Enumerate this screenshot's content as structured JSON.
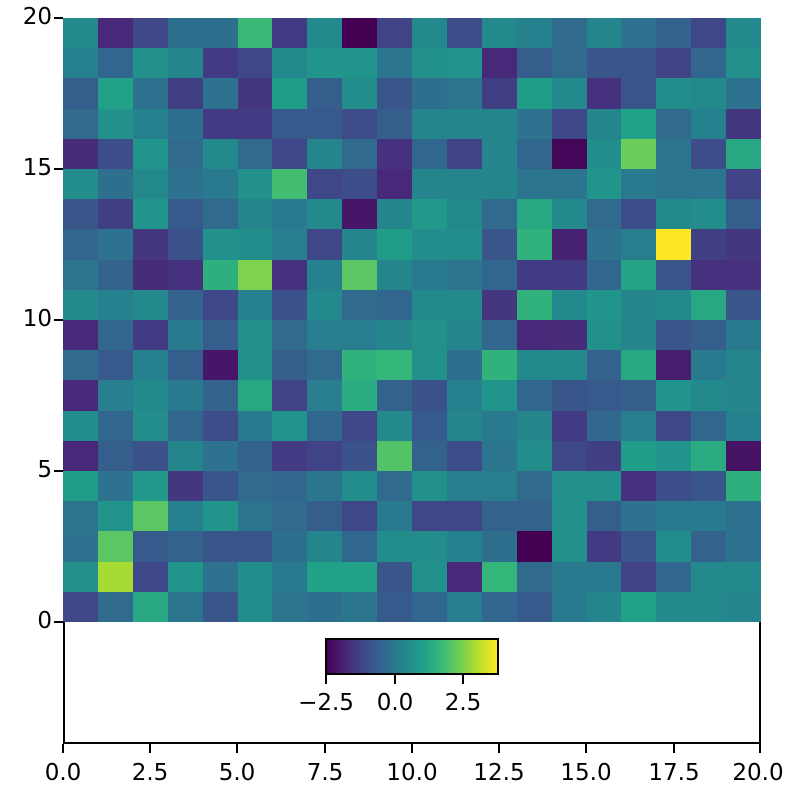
{
  "chart_data": {
    "type": "heatmap",
    "title": "",
    "xlabel": "",
    "ylabel": "",
    "xlim": [
      0,
      20
    ],
    "ylim": [
      -4,
      20
    ],
    "grid": false,
    "colormap": "viridis",
    "vmin": -2.5,
    "vmax": 3.85,
    "x_ticks": [
      "0.0",
      "2.5",
      "5.0",
      "7.5",
      "10.0",
      "12.5",
      "15.0",
      "17.5",
      "20.0"
    ],
    "y_ticks": [
      "0",
      "5",
      "10",
      "15",
      "20"
    ],
    "rows_order": "top (y=19..20) to bottom (y=0..1)",
    "values": [
      [
        0.5,
        -1.8,
        -1.1,
        -0.2,
        -0.2,
        1.8,
        -1.4,
        0.5,
        -2.5,
        -1.2,
        0.5,
        -1.0,
        0.5,
        0.3,
        -0.3,
        0.4,
        -0.1,
        -0.5,
        -1.1,
        0.5
      ],
      [
        0.3,
        -0.4,
        0.7,
        0.4,
        -1.4,
        -1.1,
        0.5,
        0.8,
        0.8,
        0.0,
        0.7,
        0.8,
        -1.8,
        -0.6,
        -0.3,
        -0.8,
        -0.8,
        -1.2,
        -0.4,
        0.7
      ],
      [
        -0.6,
        1.1,
        -0.1,
        -1.3,
        -0.1,
        -1.5,
        1.0,
        -0.6,
        0.6,
        -0.8,
        -0.2,
        0.0,
        -1.3,
        1.0,
        0.5,
        -1.6,
        -0.8,
        0.6,
        0.5,
        -0.1
      ],
      [
        -0.3,
        0.7,
        0.3,
        -0.2,
        -1.4,
        -1.4,
        -0.7,
        -0.7,
        -1.0,
        -0.6,
        0.4,
        0.4,
        0.4,
        -0.1,
        -1.1,
        0.4,
        1.1,
        -0.3,
        0.3,
        -1.5
      ],
      [
        -1.7,
        -1.0,
        0.8,
        -0.3,
        0.5,
        -0.3,
        -1.1,
        0.4,
        -0.3,
        -1.6,
        -0.4,
        -1.2,
        0.4,
        -0.4,
        -2.4,
        0.6,
        2.4,
        0.0,
        -1.0,
        1.3
      ],
      [
        0.6,
        -0.2,
        0.5,
        -0.1,
        0.1,
        0.7,
        1.9,
        -1.1,
        -1.0,
        -1.8,
        0.4,
        0.4,
        0.4,
        0.0,
        0.0,
        0.8,
        0.1,
        0.0,
        0.0,
        -1.2
      ],
      [
        -0.8,
        -1.3,
        0.8,
        -0.7,
        -0.3,
        0.4,
        0.1,
        0.5,
        -2.1,
        0.4,
        0.9,
        0.5,
        -0.3,
        1.3,
        0.5,
        -0.3,
        -1.0,
        0.5,
        0.6,
        -0.6
      ],
      [
        -0.4,
        -0.1,
        -1.5,
        -0.9,
        0.7,
        0.6,
        0.2,
        -1.1,
        0.4,
        1.0,
        0.6,
        0.6,
        -0.8,
        1.6,
        -1.9,
        -0.1,
        0.2,
        3.85,
        -1.3,
        -1.5
      ],
      [
        0.0,
        -0.5,
        -1.7,
        -1.6,
        1.5,
        2.6,
        -1.6,
        0.3,
        2.2,
        0.4,
        0.1,
        0.0,
        -0.4,
        -1.4,
        -1.4,
        -0.4,
        1.2,
        -0.8,
        -1.6,
        -1.6
      ],
      [
        0.5,
        0.3,
        0.5,
        -0.5,
        -1.1,
        0.3,
        -0.9,
        0.5,
        -0.3,
        -0.4,
        0.5,
        0.5,
        -1.5,
        1.6,
        0.5,
        0.8,
        0.4,
        0.5,
        1.3,
        -0.8
      ],
      [
        -1.8,
        -0.4,
        -1.4,
        0.1,
        -0.6,
        0.7,
        -0.3,
        0.2,
        0.2,
        0.4,
        0.7,
        0.4,
        -0.4,
        -1.8,
        -1.7,
        0.7,
        0.4,
        -0.8,
        -0.6,
        0.1
      ],
      [
        -0.3,
        -0.7,
        0.3,
        -0.6,
        -2.1,
        0.7,
        -0.6,
        -0.3,
        1.6,
        1.7,
        0.7,
        -0.2,
        1.6,
        0.5,
        0.5,
        -0.5,
        1.3,
        -2.0,
        0.1,
        0.4
      ],
      [
        -1.8,
        0.2,
        0.5,
        0.1,
        -0.5,
        1.3,
        -1.2,
        0.2,
        1.4,
        -0.5,
        -0.9,
        0.3,
        0.8,
        -0.4,
        -0.8,
        -0.7,
        -0.6,
        0.8,
        0.5,
        0.4
      ],
      [
        0.6,
        -0.4,
        0.6,
        -0.4,
        -1.0,
        0.1,
        0.8,
        -0.4,
        -1.1,
        0.5,
        -0.7,
        0.4,
        0.1,
        0.4,
        -1.4,
        -0.4,
        0.2,
        -1.1,
        -0.4,
        0.3
      ],
      [
        -1.8,
        -0.6,
        -0.9,
        0.4,
        -0.1,
        -0.5,
        -1.4,
        -1.2,
        -0.9,
        2.1,
        -0.5,
        -1.0,
        0.0,
        0.6,
        -1.1,
        -1.3,
        1.0,
        0.8,
        1.4,
        -2.2
      ],
      [
        1.0,
        -0.1,
        0.9,
        -1.5,
        -0.8,
        -0.3,
        -0.4,
        0.0,
        0.6,
        -0.3,
        0.7,
        0.2,
        0.2,
        -0.3,
        0.7,
        0.7,
        -1.6,
        -1.0,
        -0.8,
        1.5
      ],
      [
        0.0,
        0.8,
        2.2,
        0.3,
        0.8,
        0.0,
        -0.3,
        -0.6,
        -1.1,
        0.1,
        -1.1,
        -1.1,
        -0.5,
        -0.5,
        0.7,
        -0.6,
        -0.1,
        0.1,
        0.1,
        -0.1
      ],
      [
        -0.1,
        2.2,
        -0.7,
        -0.5,
        -0.8,
        -0.8,
        -0.2,
        0.4,
        -0.4,
        0.6,
        0.6,
        0.3,
        -0.2,
        -2.5,
        0.7,
        -1.4,
        -0.8,
        0.6,
        -0.5,
        -0.1
      ],
      [
        0.7,
        3.0,
        -1.1,
        0.8,
        -0.1,
        0.6,
        0.1,
        1.1,
        1.1,
        -0.8,
        0.7,
        -1.8,
        1.7,
        -0.3,
        0.1,
        0.1,
        -1.2,
        -0.4,
        0.5,
        0.5
      ],
      [
        -1.1,
        -0.3,
        1.3,
        0.0,
        -0.8,
        0.6,
        0.0,
        -0.2,
        0.0,
        -0.7,
        -0.4,
        0.2,
        -0.4,
        -0.7,
        0.1,
        0.4,
        1.1,
        0.5,
        0.5,
        0.4
      ]
    ],
    "colorbar": {
      "orientation": "horizontal",
      "position": "inset, x 7.5–12.5, below heatmap",
      "ticks": [
        "−2.5",
        "0.0",
        "2.5"
      ],
      "tick_values": [
        -2.5,
        0.0,
        2.5
      ]
    }
  },
  "axes": {
    "y_tick_labels": [
      "0",
      "5",
      "10",
      "15",
      "20"
    ],
    "x_tick_labels": [
      "0.0",
      "2.5",
      "5.0",
      "7.5",
      "10.0",
      "12.5",
      "15.0",
      "17.5",
      "20.0"
    ],
    "colorbar_tick_labels": [
      "−2.5",
      "0.0",
      "2.5"
    ]
  },
  "colors": {
    "viridis_stops": [
      "#440154",
      "#482878",
      "#3e4989",
      "#31688e",
      "#26828e",
      "#1f9e89",
      "#35b779",
      "#6ece58",
      "#b5de2b",
      "#fde725"
    ]
  }
}
